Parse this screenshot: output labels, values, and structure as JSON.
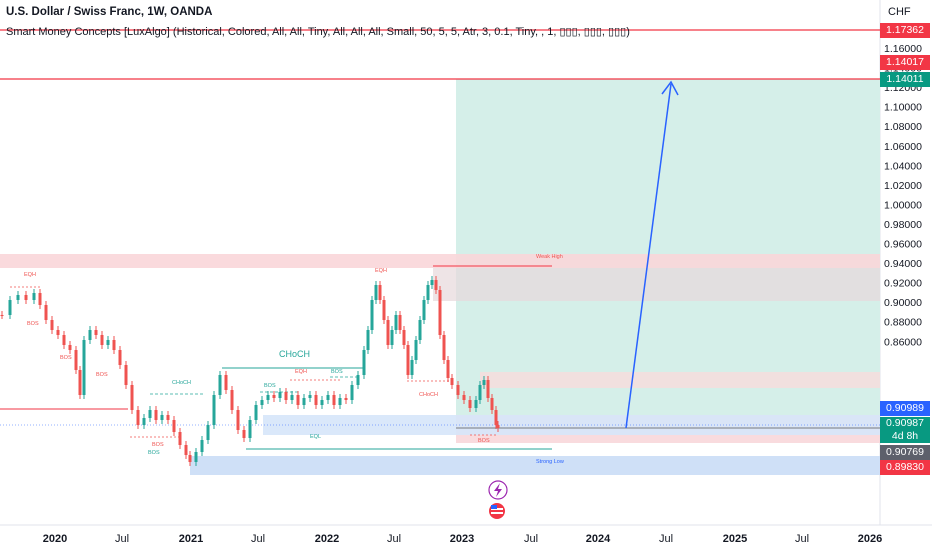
{
  "header": {
    "title": "U.S. Dollar / Swiss Franc, 1W, OANDA",
    "indicator": "Smart Money Concepts [LuxAlgo] (Historical, Colored, All, All, Tiny, All, All, All, Small, 50, 5, 5, Atr, 3, 0.1, Tiny, , 1, ▯▯▯, ▯▯▯, ▯▯▯)",
    "currency": "CHF"
  },
  "price_axis": {
    "ticks": [
      "1.16000",
      "1.14000",
      "1.12000",
      "1.10000",
      "1.08000",
      "1.06000",
      "1.04000",
      "1.02000",
      "1.00000",
      "0.98000",
      "0.96000",
      "0.94000",
      "0.92000",
      "0.90000",
      "0.88000",
      "0.86000"
    ],
    "badges": {
      "b1": "1.17362",
      "b2": "1.14017",
      "b3": "1.14011",
      "b4": "0.90989",
      "b5": "0.90987",
      "b5_sub": "4d 8h",
      "b6": "0.90769",
      "b7": "0.89830"
    }
  },
  "time_axis": {
    "ticks": [
      "2020",
      "Jul",
      "2021",
      "Jul",
      "2022",
      "Jul",
      "2023",
      "Jul",
      "2024",
      "Jul",
      "2025",
      "Jul",
      "2026"
    ]
  },
  "annotations": {
    "eqh": "EQH",
    "bos": "BOS",
    "choch": "CHoCH",
    "eql": "EQL",
    "weak_high": "Weak High",
    "strong_low": "Strong Low"
  },
  "colors": {
    "bull": "#26a69a",
    "bear": "#ef5350",
    "red_line": "#f23645",
    "blue_arrow": "#2962ff",
    "target_zone": "#d0ede7",
    "supply_zone": "#f8d7da",
    "demand_zone": "#cfe0f7"
  },
  "icons": [
    "lightning-icon",
    "us-flag-icon"
  ]
}
